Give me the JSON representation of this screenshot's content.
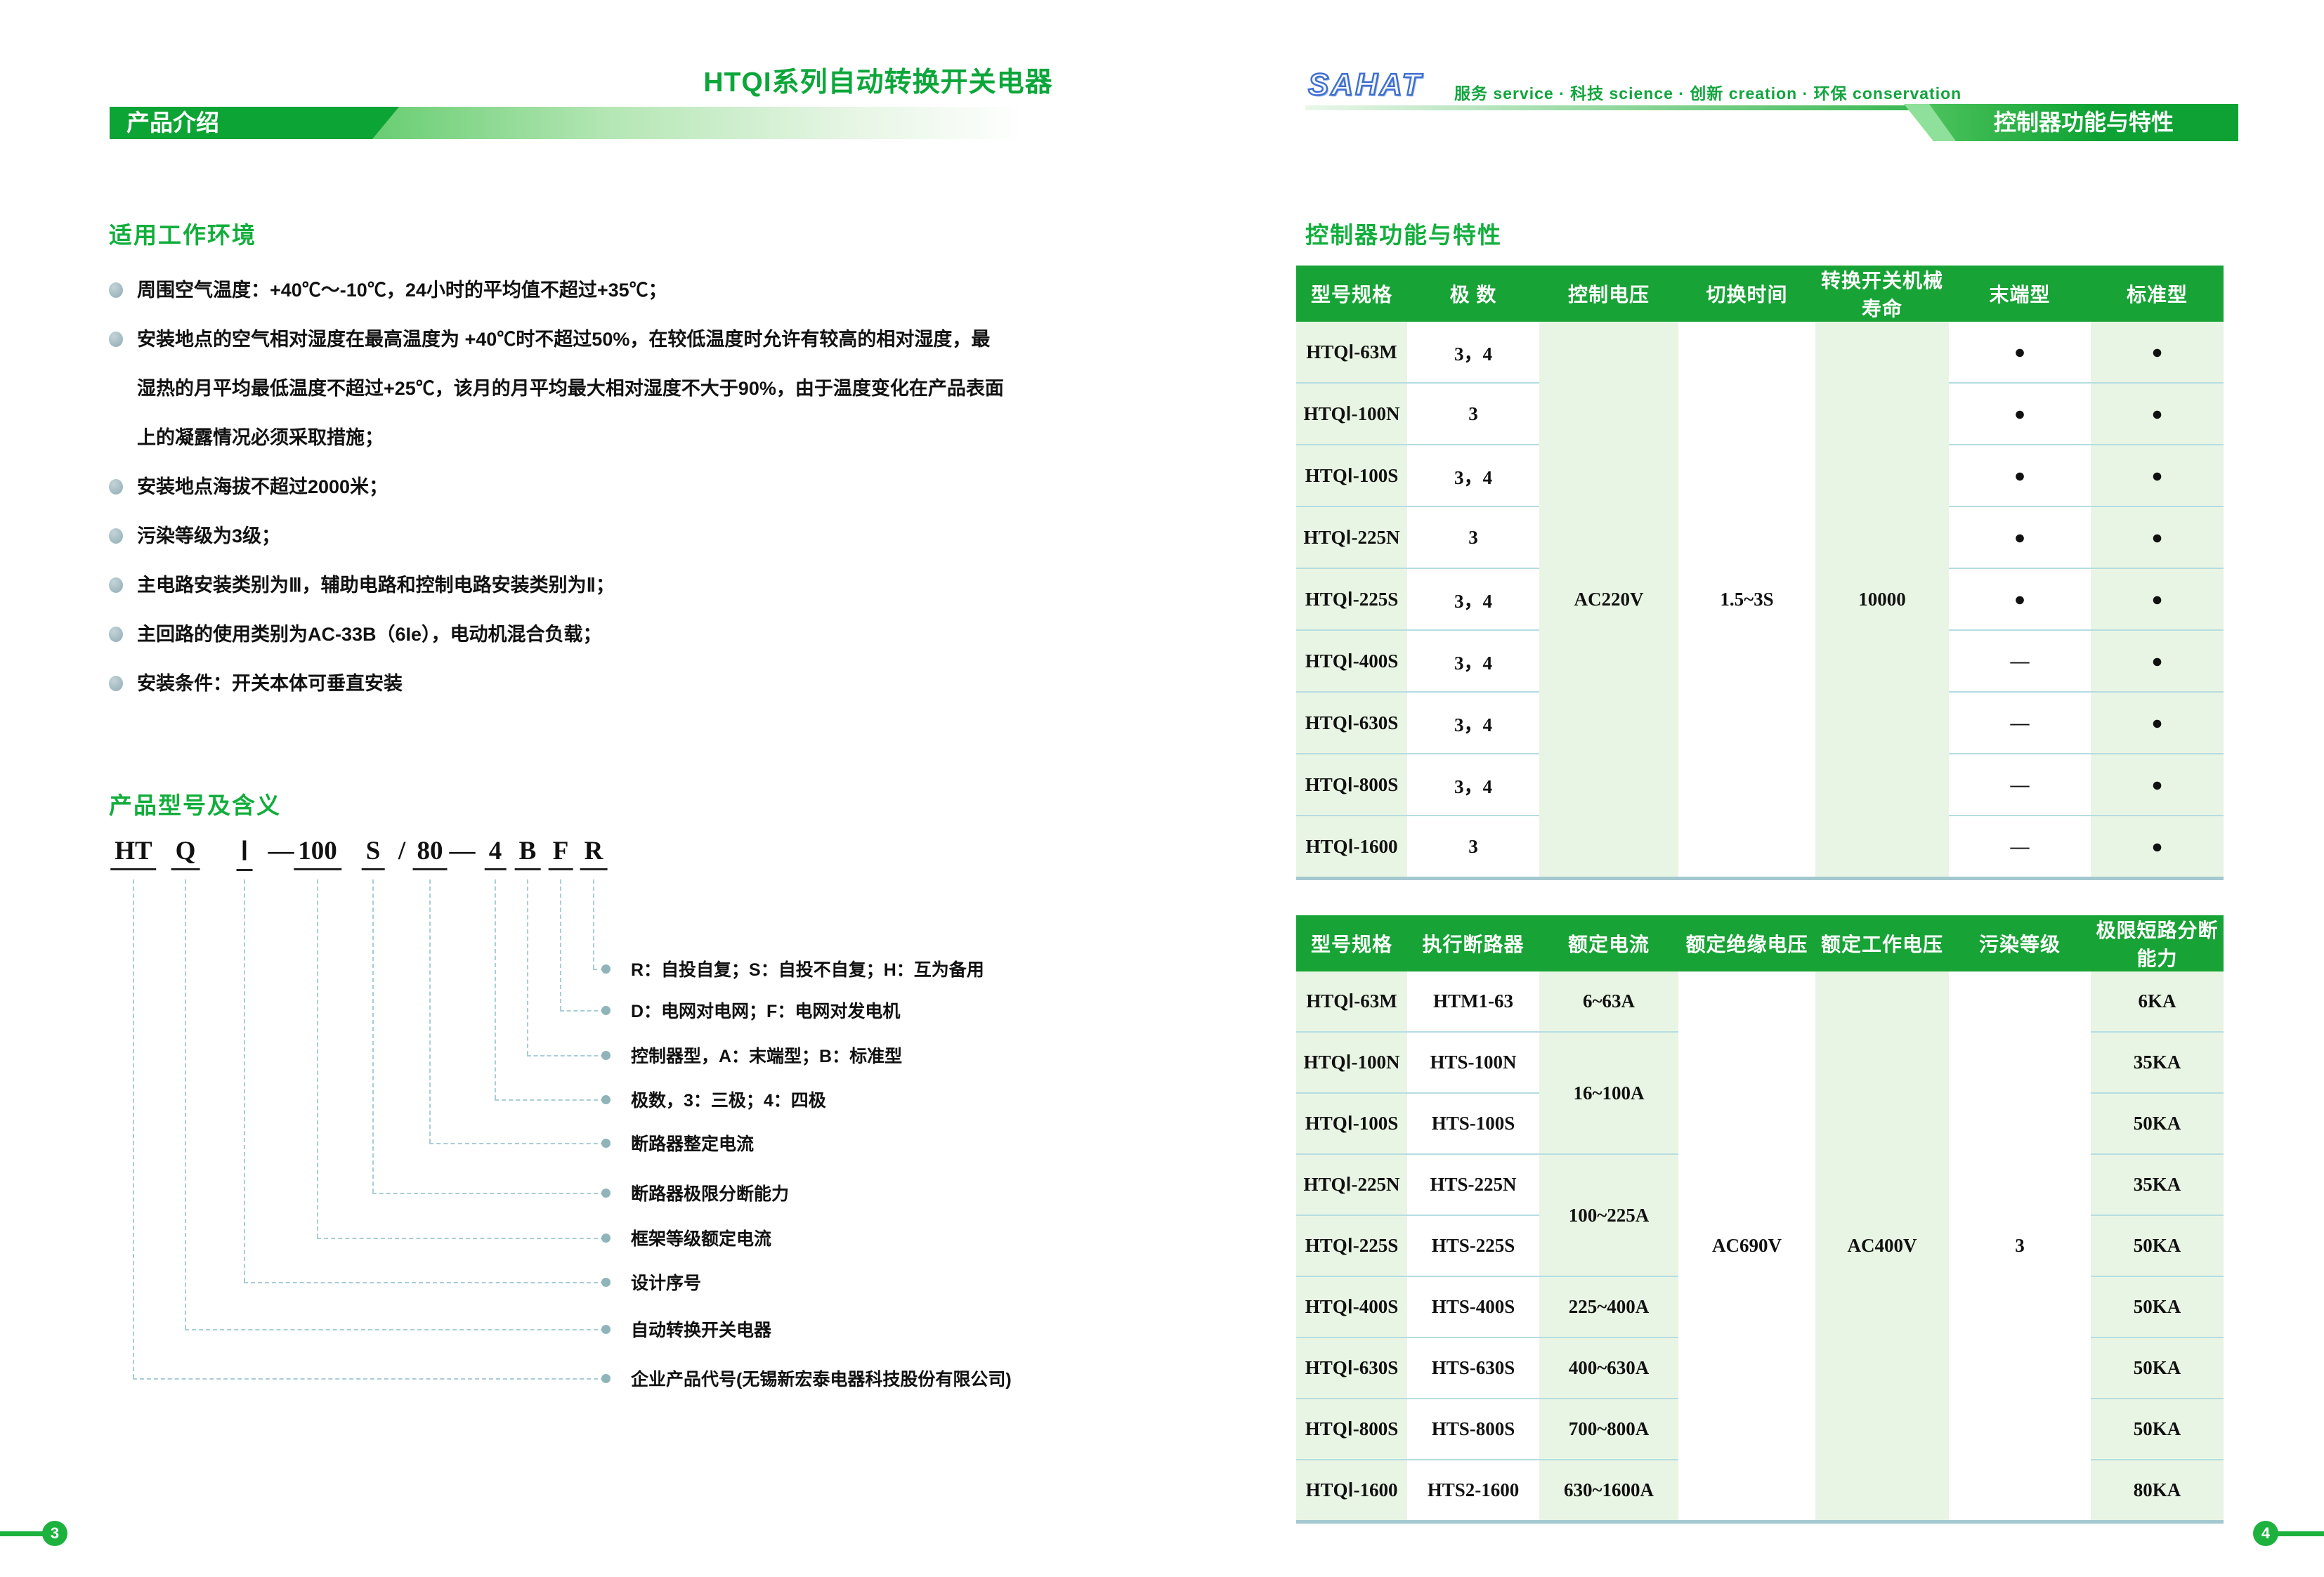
{
  "colors": {
    "accent_green": "#12ae3c",
    "banner_green": "#0ca434",
    "table_header_green": "#17a335",
    "light_cell_green": "#e9f5e4",
    "connector_teal": "#a9ced6",
    "logo_blue": "#3f6fd0"
  },
  "left_page": {
    "title": "HTQI系列自动转换开关电器",
    "banner": "产品介绍",
    "page_number": "3",
    "env_section": {
      "heading": "适用工作环境",
      "bullets": [
        "周围空气温度：+40℃～-10℃，24小时的平均值不超过+35℃；",
        "安装地点的空气相对湿度在最高温度为 +40℃时不超过50%，在较低温度时允许有较高的相对湿度，最\n湿热的月平均最低温度不超过+25℃，该月的月平均最大相对湿度不大于90%，由于温度变化在产品表面\n上的凝露情况必须采取措施；",
        "安装地点海拔不超过2000米；",
        "污染等级为3级；",
        "主电路安装类别为Ⅲ，辅助电路和控制电路安装类别为Ⅱ；",
        "主回路的使用类别为AC-33B（6Ie），电动机混合负载；",
        "安装条件：开关本体可垂直安装"
      ]
    },
    "model_section": {
      "heading": "产品型号及含义",
      "parts": [
        {
          "text": "HT",
          "underline": true
        },
        {
          "text": "Q",
          "underline": true
        },
        {
          "text": "Ⅰ",
          "underline": true
        },
        {
          "text": "—",
          "underline": false
        },
        {
          "text": "100",
          "underline": true
        },
        {
          "text": "S",
          "underline": true
        },
        {
          "text": "/",
          "underline": false
        },
        {
          "text": "80",
          "underline": true
        },
        {
          "text": "—",
          "underline": false
        },
        {
          "text": "4",
          "underline": true
        },
        {
          "text": "B",
          "underline": true
        },
        {
          "text": "F",
          "underline": true
        },
        {
          "text": "R",
          "underline": true
        }
      ],
      "labels": [
        "R：自投自复；S：自投不自复；H：互为备用",
        "D：电网对电网；F：电网对发电机",
        "控制器型，A：末端型；B：标准型",
        "极数，3：三极；4：四极",
        "断路器整定电流",
        "断路器极限分断能力",
        "框架等级额定电流",
        "设计序号",
        "自动转换开关电器",
        "企业产品代号(无锡新宏泰电器科技股份有限公司)"
      ]
    }
  },
  "right_page": {
    "logo": "SAHAT",
    "tagline": "服务 service · 科技 science · 创新 creation · 环保 conservation",
    "banner": "控制器功能与特性",
    "section_heading": "控制器功能与特性",
    "page_number": "4",
    "table1": {
      "headers": [
        "型号规格",
        "极 数",
        "控制电压",
        "切换时间",
        "转换开关机械寿命",
        "末端型",
        "标准型"
      ],
      "merged": {
        "control_voltage": "AC220V",
        "switching_time": "1.5~3S",
        "mechanical_life": "10000"
      },
      "rows": [
        {
          "model": "HTQⅠ-63M",
          "poles": "3，4",
          "terminal": "●",
          "standard": "●"
        },
        {
          "model": "HTQⅠ-100N",
          "poles": "3",
          "terminal": "●",
          "standard": "●"
        },
        {
          "model": "HTQⅠ-100S",
          "poles": "3，4",
          "terminal": "●",
          "standard": "●"
        },
        {
          "model": "HTQⅠ-225N",
          "poles": "3",
          "terminal": "●",
          "standard": "●"
        },
        {
          "model": "HTQⅠ-225S",
          "poles": "3，4",
          "terminal": "●",
          "standard": "●"
        },
        {
          "model": "HTQⅠ-400S",
          "poles": "3，4",
          "terminal": "—",
          "standard": "●"
        },
        {
          "model": "HTQⅠ-630S",
          "poles": "3，4",
          "terminal": "—",
          "standard": "●"
        },
        {
          "model": "HTQⅠ-800S",
          "poles": "3，4",
          "terminal": "—",
          "standard": "●"
        },
        {
          "model": "HTQⅠ-1600",
          "poles": "3",
          "terminal": "—",
          "standard": "●"
        }
      ]
    },
    "table2": {
      "headers": [
        "型号规格",
        "执行断路器",
        "额定电流",
        "额定绝缘电压",
        "额定工作电压",
        "污染等级",
        "极限短路分断能力"
      ],
      "merged": {
        "insulation_voltage": "AC690V",
        "working_voltage": "AC400V",
        "pollution_degree": "3"
      },
      "rows": [
        {
          "model": "HTQⅠ-63M",
          "breaker": "HTM1-63",
          "current": "6~63A",
          "current_span": 1,
          "breaking": "6KA"
        },
        {
          "model": "HTQⅠ-100N",
          "breaker": "HTS-100N",
          "current": "16~100A",
          "current_span": 2,
          "breaking": "35KA"
        },
        {
          "model": "HTQⅠ-100S",
          "breaker": "HTS-100S",
          "breaking": "50KA"
        },
        {
          "model": "HTQⅠ-225N",
          "breaker": "HTS-225N",
          "current": "100~225A",
          "current_span": 2,
          "breaking": "35KA"
        },
        {
          "model": "HTQⅠ-225S",
          "breaker": "HTS-225S",
          "breaking": "50KA"
        },
        {
          "model": "HTQⅠ-400S",
          "breaker": "HTS-400S",
          "current": "225~400A",
          "current_span": 1,
          "breaking": "50KA"
        },
        {
          "model": "HTQⅠ-630S",
          "breaker": "HTS-630S",
          "current": "400~630A",
          "current_span": 1,
          "breaking": "50KA"
        },
        {
          "model": "HTQⅠ-800S",
          "breaker": "HTS-800S",
          "current": "700~800A",
          "current_span": 1,
          "breaking": "50KA"
        },
        {
          "model": "HTQⅠ-1600",
          "breaker": "HTS2-1600",
          "current": "630~1600A",
          "current_span": 1,
          "breaking": "80KA"
        }
      ]
    }
  }
}
